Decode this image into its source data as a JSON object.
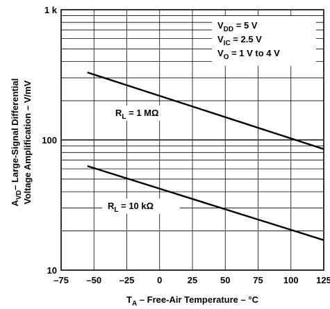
{
  "chart_data": {
    "type": "line",
    "xlabel": {
      "main": "T",
      "sub": "A",
      "rest": " – Free-Air Temperature – °C"
    },
    "ylabel": {
      "line1_main": "A",
      "line1_sub": "VD",
      "line1_rest": "– Large-Signal Differential",
      "line2": "Voltage Amplification – V/mV"
    },
    "x_ticks": [
      "–75",
      "–50",
      "–25",
      "0",
      "25",
      "50",
      "75",
      "100",
      "125"
    ],
    "x_range": [
      -75,
      125
    ],
    "y_scale": "log",
    "y_range": [
      10,
      1000
    ],
    "y_ticks": [
      {
        "value": 10,
        "label": "10"
      },
      {
        "value": 100,
        "label": "100"
      },
      {
        "value": 1000,
        "label": "1 k"
      }
    ],
    "grid": true,
    "conditions": [
      {
        "main": "V",
        "sub": "DD",
        "rest": " = 5 V"
      },
      {
        "main": "V",
        "sub": "IC",
        "rest": " = 2.5 V"
      },
      {
        "main": "V",
        "sub": "O",
        "rest": " = 1 V to 4 V"
      }
    ],
    "series": [
      {
        "name": "R_L = 1 MΩ",
        "label": {
          "main": "R",
          "sub": "L",
          "rest": " = 1 MΩ"
        },
        "x": [
          -55,
          125
        ],
        "y": [
          330,
          85
        ]
      },
      {
        "name": "R_L = 10 kΩ",
        "label": {
          "main": "R",
          "sub": "L",
          "rest": " = 10 kΩ"
        },
        "x": [
          -55,
          125
        ],
        "y": [
          63,
          17
        ]
      }
    ]
  }
}
